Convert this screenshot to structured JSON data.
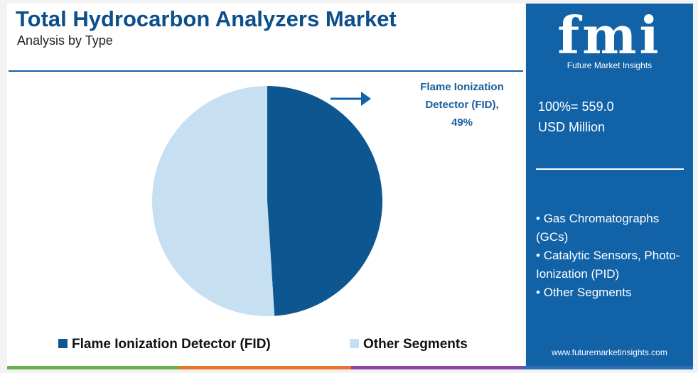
{
  "chart_data": {
    "type": "pie",
    "title": "Total Hydrocarbon Analyzers Market",
    "subtitle": "Analysis by Type",
    "categories": [
      "Flame Ionization Detector (FID)",
      "Other Segments"
    ],
    "values": [
      49,
      51
    ],
    "value_labels": [
      "49%",
      null
    ],
    "colors": [
      "#0d5690",
      "#c6e0f2"
    ],
    "callout": "Flame Ionization Detector (FID),"
  },
  "panel": {
    "logo": "fmi",
    "brand": "Future Market Insights",
    "total": "100%= 559.0",
    "unit": "USD Million",
    "segments": [
      "Gas Chromatographs (GCs)",
      "Catalytic Sensors, Photo-Ionization (PID)",
      "Other Segments"
    ],
    "website": "www.futuremarketinsights.com"
  }
}
